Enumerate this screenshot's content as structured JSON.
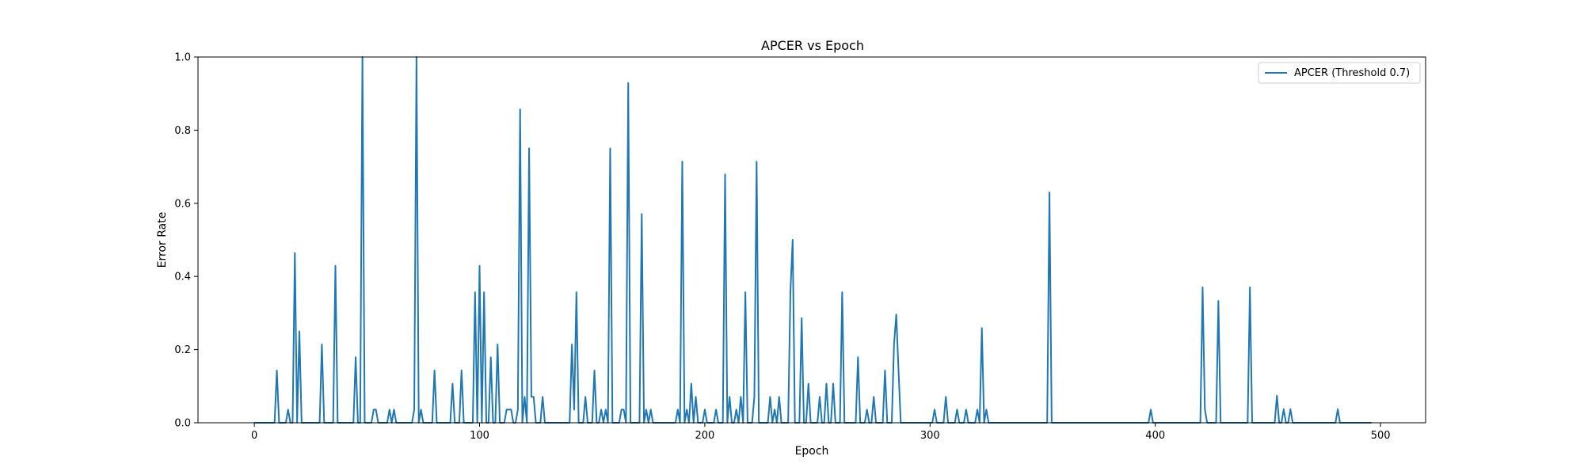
{
  "chart_data": {
    "type": "line",
    "title": "APCER vs Epoch",
    "xlabel": "Epoch",
    "ylabel": "Error Rate",
    "xlim": [
      -25,
      520
    ],
    "ylim": [
      0,
      1
    ],
    "xticks": [
      0,
      100,
      200,
      300,
      400,
      500
    ],
    "yticks": [
      0.0,
      0.2,
      0.4,
      0.6,
      0.8,
      1.0
    ],
    "xtick_labels": [
      "0",
      "100",
      "200",
      "300",
      "400",
      "500"
    ],
    "ytick_labels": [
      "0.0",
      "0.2",
      "0.4",
      "0.6",
      "0.8",
      "1.0"
    ],
    "grid": false,
    "legend_position": "top-right",
    "series": [
      {
        "name": "APCER (Threshold 0.7)",
        "color": "#1f77b4",
        "x_start": 0,
        "x_step": 1,
        "values": [
          0,
          0,
          0,
          0,
          0,
          0,
          0,
          0,
          0,
          0,
          0.143,
          0,
          0,
          0,
          0,
          0.036,
          0,
          0,
          0.464,
          0,
          0.25,
          0,
          0,
          0,
          0,
          0,
          0,
          0,
          0,
          0,
          0.214,
          0,
          0,
          0,
          0,
          0,
          0.429,
          0,
          0,
          0,
          0,
          0,
          0,
          0,
          0,
          0.179,
          0,
          0,
          1.0,
          0,
          0,
          0,
          0,
          0.036,
          0.036,
          0,
          0,
          0,
          0,
          0,
          0.036,
          0,
          0.036,
          0,
          0,
          0,
          0,
          0,
          0,
          0,
          0,
          0.036,
          1.0,
          0,
          0.036,
          0,
          0,
          0,
          0,
          0,
          0.143,
          0,
          0,
          0,
          0,
          0,
          0,
          0,
          0.107,
          0,
          0,
          0,
          0.143,
          0,
          0,
          0,
          0,
          0,
          0.357,
          0,
          0.429,
          0,
          0.357,
          0,
          0,
          0.179,
          0,
          0,
          0.214,
          0,
          0,
          0,
          0.036,
          0.036,
          0.036,
          0,
          0,
          0.036,
          0.857,
          0,
          0.071,
          0,
          0.75,
          0.071,
          0.071,
          0,
          0,
          0,
          0.071,
          0,
          0,
          0,
          0,
          0,
          0,
          0,
          0,
          0,
          0,
          0,
          0,
          0.214,
          0.036,
          0.357,
          0,
          0,
          0,
          0.071,
          0,
          0,
          0,
          0.143,
          0,
          0,
          0.036,
          0,
          0.036,
          0,
          0.75,
          0,
          0,
          0,
          0,
          0.036,
          0.036,
          0,
          0.929,
          0,
          0,
          0,
          0,
          0,
          0.571,
          0,
          0.036,
          0,
          0.036,
          0,
          0,
          0,
          0,
          0,
          0,
          0,
          0,
          0,
          0,
          0,
          0.036,
          0,
          0.714,
          0,
          0.036,
          0,
          0.107,
          0,
          0.071,
          0,
          0,
          0,
          0.036,
          0,
          0,
          0,
          0,
          0.036,
          0,
          0,
          0,
          0.679,
          0,
          0.071,
          0,
          0,
          0.036,
          0,
          0.071,
          0,
          0.357,
          0,
          0,
          0,
          0.071,
          0.714,
          0,
          0,
          0,
          0,
          0,
          0.071,
          0,
          0.036,
          0,
          0.071,
          0,
          0,
          0,
          0,
          0.357,
          0.5,
          0,
          0,
          0,
          0.286,
          0,
          0,
          0.107,
          0,
          0,
          0,
          0,
          0.071,
          0,
          0,
          0.107,
          0,
          0,
          0.107,
          0,
          0,
          0,
          0.357,
          0,
          0,
          0,
          0,
          0,
          0,
          0.179,
          0,
          0,
          0,
          0.036,
          0,
          0,
          0.071,
          0,
          0,
          0,
          0,
          0.143,
          0,
          0,
          0,
          0.214,
          0.296,
          0.143,
          0,
          0,
          0,
          0,
          0,
          0,
          0,
          0,
          0,
          0,
          0,
          0,
          0,
          0,
          0,
          0.036,
          0,
          0,
          0,
          0,
          0.071,
          0,
          0,
          0,
          0,
          0.036,
          0,
          0,
          0,
          0.036,
          0,
          0,
          0,
          0,
          0.036,
          0,
          0.259,
          0,
          0.036,
          0,
          0,
          0,
          0,
          0,
          0,
          0,
          0,
          0,
          0,
          0,
          0,
          0,
          0,
          0,
          0,
          0,
          0,
          0,
          0,
          0,
          0,
          0,
          0,
          0,
          0,
          0,
          0.63,
          0,
          0,
          0,
          0,
          0,
          0,
          0,
          0,
          0,
          0,
          0,
          0,
          0,
          0,
          0,
          0,
          0,
          0,
          0,
          0,
          0,
          0,
          0,
          0,
          0,
          0,
          0,
          0,
          0,
          0,
          0,
          0,
          0,
          0,
          0,
          0,
          0,
          0,
          0,
          0,
          0,
          0,
          0,
          0,
          0.036,
          0,
          0,
          0,
          0,
          0,
          0,
          0,
          0,
          0,
          0,
          0,
          0,
          0,
          0,
          0,
          0,
          0,
          0,
          0,
          0,
          0,
          0,
          0.37,
          0.037,
          0,
          0,
          0,
          0,
          0,
          0.333,
          0,
          0,
          0,
          0,
          0,
          0,
          0,
          0,
          0,
          0,
          0,
          0,
          0,
          0.37,
          0,
          0,
          0,
          0,
          0,
          0,
          0,
          0,
          0,
          0,
          0,
          0.074,
          0,
          0,
          0.037,
          0,
          0,
          0.037,
          0,
          0,
          0,
          0,
          0,
          0,
          0,
          0,
          0,
          0,
          0,
          0,
          0,
          0,
          0,
          0,
          0,
          0,
          0,
          0,
          0.037,
          0,
          0,
          0,
          0,
          0,
          0,
          0,
          0,
          0,
          0,
          0,
          0,
          0,
          0,
          0
        ]
      }
    ]
  }
}
